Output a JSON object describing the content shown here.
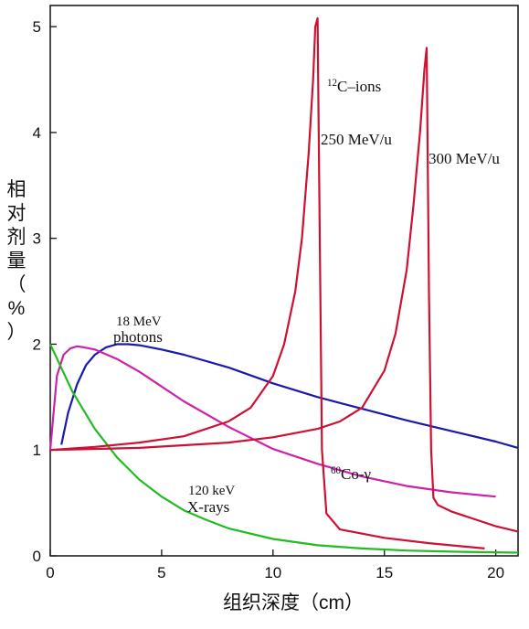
{
  "chart_data": {
    "type": "line",
    "xlabel": "组织深度（cm）",
    "ylabel": "相对剂量（%）",
    "xlim": [
      0,
      21
    ],
    "ylim": [
      0,
      5.2
    ],
    "xticks": [
      "0",
      "5",
      "10",
      "15",
      "20"
    ],
    "yticks": [
      "0",
      "1",
      "2",
      "3",
      "4",
      "5"
    ],
    "grid": false,
    "legend": "none",
    "series": [
      {
        "color": "#1a1aa8",
        "labels": [
          "18 MeV",
          "photons"
        ],
        "x": [
          0.5,
          0.8,
          1.2,
          1.6,
          2.0,
          2.5,
          3.0,
          3.5,
          4.0,
          5.0,
          6.0,
          8.0,
          10.0,
          12.0,
          14.0,
          16.0,
          18.0,
          20.0,
          21.0
        ],
        "y": [
          1.05,
          1.35,
          1.62,
          1.8,
          1.9,
          1.97,
          2.0,
          2.0,
          1.99,
          1.95,
          1.9,
          1.78,
          1.63,
          1.5,
          1.39,
          1.28,
          1.18,
          1.08,
          1.02
        ]
      },
      {
        "color": "#cc22aa",
        "labels": [
          "60Co-γ"
        ],
        "x": [
          0.0,
          0.3,
          0.6,
          0.9,
          1.2,
          1.5,
          2.0,
          3.0,
          4.0,
          5.0,
          6.0,
          8.0,
          10.0,
          12.0,
          14.0,
          16.0,
          18.0,
          20.0
        ],
        "y": [
          1.0,
          1.7,
          1.9,
          1.96,
          1.98,
          1.97,
          1.95,
          1.86,
          1.74,
          1.6,
          1.46,
          1.22,
          1.01,
          0.87,
          0.75,
          0.66,
          0.6,
          0.56
        ]
      },
      {
        "color": "#22bb22",
        "labels": [
          "120 keV",
          "X-rays"
        ],
        "x": [
          0.0,
          1.0,
          2.0,
          3.0,
          4.0,
          5.0,
          6.0,
          7.0,
          8.0,
          10.0,
          12.0,
          14.0,
          16.0,
          18.0,
          21.0
        ],
        "y": [
          2.0,
          1.55,
          1.2,
          0.93,
          0.72,
          0.56,
          0.43,
          0.34,
          0.26,
          0.16,
          0.1,
          0.07,
          0.05,
          0.04,
          0.03
        ]
      },
      {
        "color": "#cc1133",
        "labels": [
          "12C–ions",
          "250 MeV/u"
        ],
        "x": [
          0.0,
          2.0,
          4.0,
          6.0,
          8.0,
          9.0,
          10.0,
          10.5,
          11.0,
          11.3,
          11.6,
          11.8,
          11.9,
          12.0,
          12.1,
          12.2,
          12.4,
          13.0,
          15.0,
          17.0,
          19.5
        ],
        "y": [
          1.0,
          1.03,
          1.07,
          1.13,
          1.27,
          1.4,
          1.7,
          2.0,
          2.5,
          3.0,
          3.8,
          4.5,
          5.0,
          5.08,
          3.0,
          1.0,
          0.4,
          0.25,
          0.17,
          0.12,
          0.07
        ]
      },
      {
        "color": "#cc1133",
        "labels": [
          "300 MeV/u"
        ],
        "x": [
          0.0,
          4.0,
          8.0,
          10.0,
          12.0,
          13.0,
          14.0,
          15.0,
          15.5,
          16.0,
          16.3,
          16.6,
          16.8,
          16.9,
          17.0,
          17.1,
          17.2,
          17.4,
          18.0,
          19.0,
          20.0,
          21.0
        ],
        "y": [
          1.0,
          1.02,
          1.07,
          1.12,
          1.2,
          1.27,
          1.4,
          1.75,
          2.1,
          2.7,
          3.3,
          4.0,
          4.6,
          4.8,
          2.5,
          1.0,
          0.55,
          0.48,
          0.42,
          0.35,
          0.28,
          0.23
        ]
      }
    ]
  }
}
